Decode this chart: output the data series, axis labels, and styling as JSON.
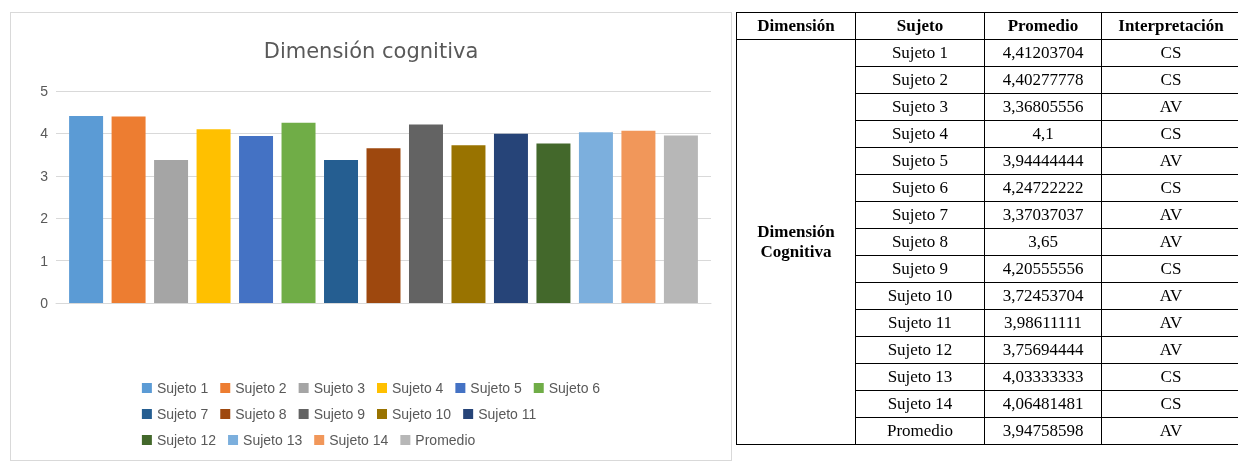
{
  "chart_data": [
    {
      "type": "bar",
      "title": "Dimensión cognitiva",
      "categories": [
        null
      ],
      "ylim": [
        0,
        5
      ],
      "yticks": [
        0,
        1,
        2,
        3,
        4,
        5
      ],
      "grid": "y",
      "legend": "bottom",
      "series": [
        {
          "name": "Sujeto 1",
          "color": "#5b9bd5",
          "values": [
            4.41
          ]
        },
        {
          "name": "Sujeto 2",
          "color": "#ed7d31",
          "values": [
            4.4
          ]
        },
        {
          "name": "Sujeto 3",
          "color": "#a5a5a5",
          "values": [
            3.37
          ]
        },
        {
          "name": "Sujeto 4",
          "color": "#ffc000",
          "values": [
            4.1
          ]
        },
        {
          "name": "Sujeto 5",
          "color": "#4472c4",
          "values": [
            3.94
          ]
        },
        {
          "name": "Sujeto 6",
          "color": "#70ad47",
          "values": [
            4.25
          ]
        },
        {
          "name": "Sujeto 7",
          "color": "#255e91",
          "values": [
            3.37
          ]
        },
        {
          "name": "Sujeto 8",
          "color": "#9e480e",
          "values": [
            3.65
          ]
        },
        {
          "name": "Sujeto 9",
          "color": "#636363",
          "values": [
            4.21
          ]
        },
        {
          "name": "Sujeto 10",
          "color": "#997300",
          "values": [
            3.72
          ]
        },
        {
          "name": "Sujeto 11",
          "color": "#264478",
          "values": [
            3.99
          ]
        },
        {
          "name": "Sujeto 12",
          "color": "#43682b",
          "values": [
            3.76
          ]
        },
        {
          "name": "Sujeto 13",
          "color": "#7cafdd",
          "values": [
            4.03
          ]
        },
        {
          "name": "Sujeto 14",
          "color": "#f1975a",
          "values": [
            4.06
          ]
        },
        {
          "name": "Promedio",
          "color": "#b7b7b7",
          "values": [
            3.95
          ]
        }
      ]
    },
    {
      "type": "other",
      "annotations": [
        "Dimensión",
        "Sujeto",
        "Promedio",
        "Interpretación",
        "Dimensión Cognitiva",
        "Sujeto 1",
        "4,41203704",
        "CS",
        "Sujeto 2",
        "4,40277778",
        "CS",
        "Sujeto 3",
        "3,36805556",
        "AV",
        "Sujeto 4",
        "4,1",
        "CS",
        "Sujeto 5",
        "3,94444444",
        "AV",
        "Sujeto 6",
        "4,24722222",
        "CS",
        "Sujeto 7",
        "3,37037037",
        "AV",
        "Sujeto 8",
        "3,65",
        "AV",
        "Sujeto 9",
        "4,20555556",
        "CS",
        "Sujeto 10",
        "3,72453704",
        "AV",
        "Sujeto 11",
        "3,98611111",
        "AV",
        "Sujeto 12",
        "3,75694444",
        "AV",
        "Sujeto 13",
        "4,03333333",
        "CS",
        "Sujeto 14",
        "4,06481481",
        "CS",
        "Promedio",
        "3,94758598",
        "AV"
      ]
    }
  ]
}
